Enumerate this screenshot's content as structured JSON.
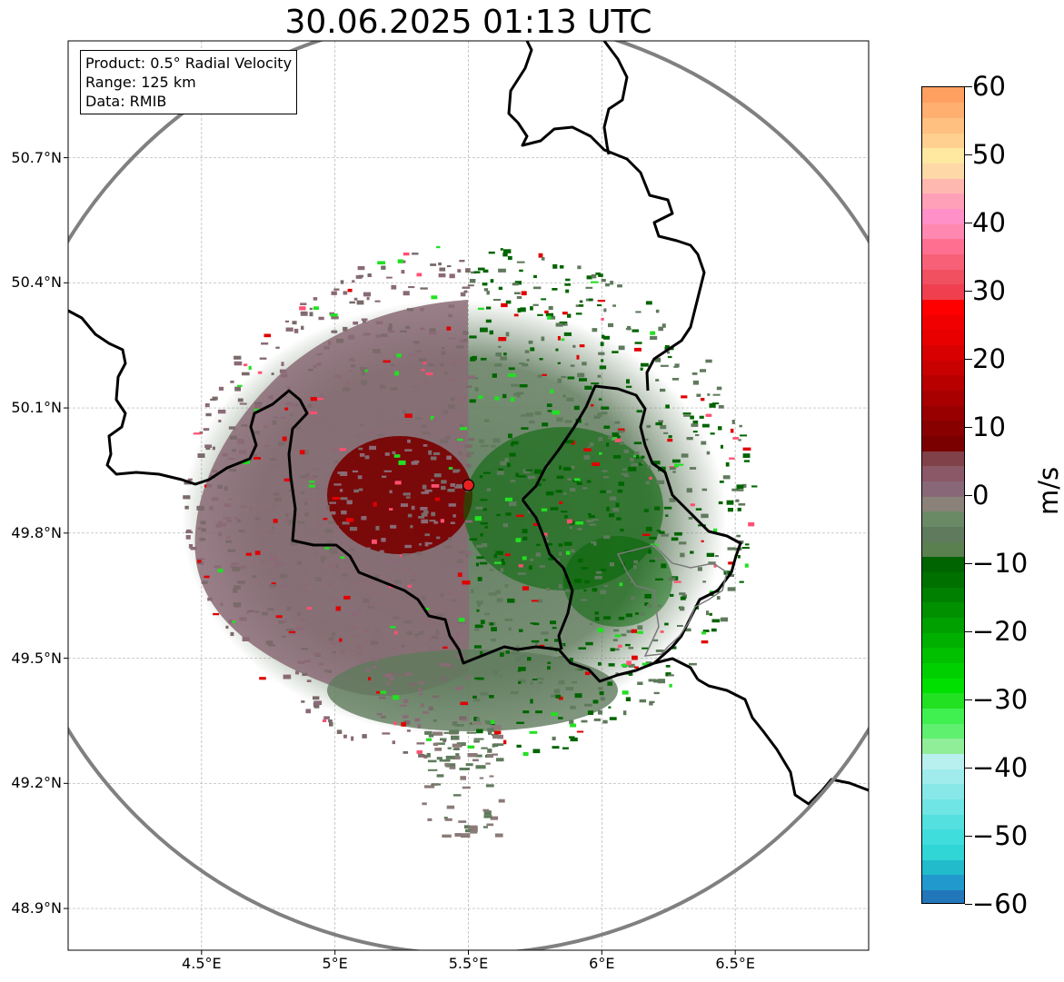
{
  "title": "30.06.2025 01:13 UTC",
  "info": {
    "product": "Product: 0.5° Radial Velocity",
    "range": "Range: 125 km",
    "source": "Data: RMIB"
  },
  "map": {
    "lon_min": 4.0,
    "lon_max": 7.0,
    "lat_min": 48.8,
    "lat_max": 50.98,
    "radar_site": {
      "lon": 5.5,
      "lat": 49.915
    },
    "range_km": 125
  },
  "lat_ticks": [
    {
      "value": 48.9,
      "label": "48.9°N"
    },
    {
      "value": 49.2,
      "label": "49.2°N"
    },
    {
      "value": 49.5,
      "label": "49.5°N"
    },
    {
      "value": 49.8,
      "label": "49.8°N"
    },
    {
      "value": 50.1,
      "label": "50.1°N"
    },
    {
      "value": 50.4,
      "label": "50.4°N"
    },
    {
      "value": 50.7,
      "label": "50.7°N"
    }
  ],
  "lon_ticks": [
    {
      "value": 4.5,
      "label": "4.5°E"
    },
    {
      "value": 5.0,
      "label": "5°E"
    },
    {
      "value": 5.5,
      "label": "5.5°E"
    },
    {
      "value": 6.0,
      "label": "6°E"
    },
    {
      "value": 6.5,
      "label": "6.5°E"
    }
  ],
  "colorbar": {
    "unit": "m/s",
    "min": -60,
    "max": 60,
    "ticks": [
      {
        "value": 60,
        "label": "60"
      },
      {
        "value": 50,
        "label": "50"
      },
      {
        "value": 40,
        "label": "40"
      },
      {
        "value": 30,
        "label": "30"
      },
      {
        "value": 20,
        "label": "20"
      },
      {
        "value": 10,
        "label": "10"
      },
      {
        "value": 0,
        "label": "0"
      },
      {
        "value": -10,
        "label": "−10"
      },
      {
        "value": -20,
        "label": "−20"
      },
      {
        "value": -30,
        "label": "−30"
      },
      {
        "value": -40,
        "label": "−40"
      },
      {
        "value": -50,
        "label": "−50"
      },
      {
        "value": -60,
        "label": "−60"
      }
    ],
    "colors": [
      "#2277bb",
      "#2299cc",
      "#22bbcc",
      "#30d5d5",
      "#40dddd",
      "#55e0e0",
      "#70e5e5",
      "#88e8e8",
      "#a0ecec",
      "#b8f0f0",
      "#90ee98",
      "#60f070",
      "#40f050",
      "#22e022",
      "#00e000",
      "#00d000",
      "#00c000",
      "#00b000",
      "#00a000",
      "#009000",
      "#008000",
      "#007000",
      "#006400",
      "#5a8050",
      "#5f7a5c",
      "#6a8a66",
      "#8a8278",
      "#886878",
      "#8a5866",
      "#804248",
      "#7a0000",
      "#880000",
      "#980000",
      "#a80000",
      "#b80000",
      "#c80000",
      "#d80000",
      "#e80000",
      "#f00000",
      "#ff0000",
      "#f04050",
      "#f05060",
      "#f86078",
      "#ff7090",
      "#ff88b0",
      "#ff90c8",
      "#ffa0b8",
      "#ffb8b0",
      "#ffd8a8",
      "#ffe8a0",
      "#ffd090",
      "#ffc080",
      "#ffb070",
      "#ffa060"
    ]
  },
  "regions": [
    {
      "name": "approaching",
      "color": "#5f7a5c"
    },
    {
      "name": "receding",
      "color": "#8a6a76"
    },
    {
      "name": "strong-receding",
      "color": "#7a0000"
    },
    {
      "name": "strong-approaching",
      "color": "#006400"
    }
  ]
}
